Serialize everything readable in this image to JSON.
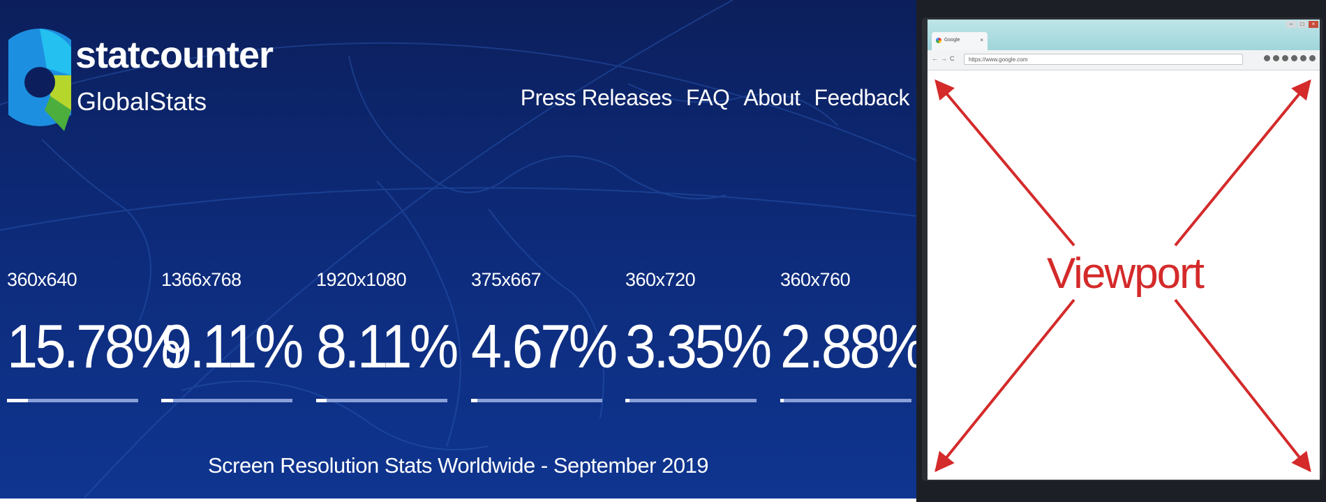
{
  "brand": {
    "name": "statcounter",
    "subtitle": "GlobalStats"
  },
  "nav": {
    "items": [
      "Press Releases",
      "FAQ",
      "About",
      "Feedback"
    ]
  },
  "stats": [
    {
      "resolution": "360x640",
      "percent": "15.78%",
      "share": 15.78
    },
    {
      "resolution": "1366x768",
      "percent": "9.11%",
      "share": 9.11
    },
    {
      "resolution": "1920x1080",
      "percent": "8.11%",
      "share": 8.11
    },
    {
      "resolution": "375x667",
      "percent": "4.67%",
      "share": 4.67
    },
    {
      "resolution": "360x720",
      "percent": "3.35%",
      "share": 3.35
    },
    {
      "resolution": "360x760",
      "percent": "2.88%",
      "share": 2.88
    }
  ],
  "footer": {
    "title": "Screen Resolution Stats Worldwide - September 2019"
  },
  "diagram": {
    "label": "Viewport",
    "tab_title": "Google",
    "url": "https://www.google.com",
    "arrow_color": "#d42a2a"
  },
  "colors": {
    "banner_bg": "#0d2a78",
    "bar_track": "#8aa0d8",
    "bar_fill": "#ffffff"
  }
}
